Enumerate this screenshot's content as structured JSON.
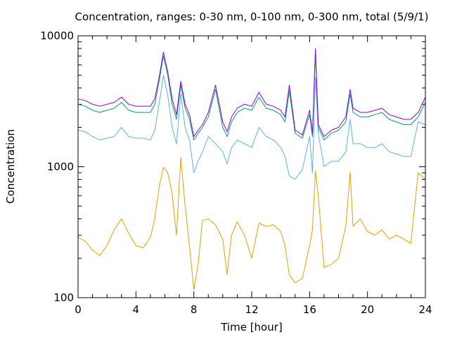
{
  "chart_data": {
    "type": "line",
    "title": "Concentration, ranges: 0-30 nm, 0-100 nm, 0-300 nm, total (5/9/1)",
    "xlabel": "Time [hour]",
    "ylabel": "Concentration",
    "xlim": [
      0,
      24
    ],
    "ylim": [
      100,
      10000
    ],
    "yscale": "log",
    "grid": false,
    "legend": "none",
    "x_ticks": [
      0,
      4,
      8,
      12,
      16,
      20,
      24
    ],
    "x_tick_labels": [
      "0",
      "4",
      "8",
      "12",
      "16",
      "20",
      "24"
    ],
    "y_ticks": [
      100,
      1000,
      10000
    ],
    "y_tick_labels": [
      "100",
      "1000",
      "10000"
    ],
    "series": [
      {
        "color": "#e69f00",
        "x": [
          0,
          0.5,
          1,
          1.5,
          2,
          2.5,
          3,
          3.5,
          4,
          4.5,
          5,
          5.3,
          5.6,
          5.9,
          6.2,
          6.5,
          6.8,
          7.1,
          7.4,
          7.7,
          8,
          8.3,
          8.6,
          9,
          9.5,
          10,
          10.3,
          10.6,
          11,
          11.5,
          12,
          12.5,
          13,
          13.5,
          14,
          14.3,
          14.6,
          15,
          15.5,
          16,
          16.2,
          16.4,
          16.6,
          17,
          17.5,
          18,
          18.5,
          18.8,
          19,
          19.5,
          20,
          20.5,
          21,
          21.5,
          22,
          22.5,
          23,
          23.5,
          24
        ],
        "y": [
          290,
          270,
          230,
          210,
          250,
          330,
          400,
          310,
          250,
          240,
          290,
          400,
          700,
          990,
          900,
          620,
          300,
          1180,
          500,
          250,
          115,
          180,
          390,
          400,
          360,
          280,
          150,
          300,
          380,
          300,
          200,
          370,
          350,
          360,
          320,
          250,
          150,
          130,
          140,
          250,
          330,
          930,
          600,
          170,
          180,
          200,
          350,
          910,
          350,
          400,
          320,
          300,
          330,
          280,
          300,
          280,
          260,
          900,
          800
        ]
      },
      {
        "color": "#56b4e9",
        "x": [
          0,
          0.5,
          1,
          1.5,
          2,
          2.5,
          3,
          3.5,
          4,
          4.5,
          5,
          5.3,
          5.6,
          5.9,
          6.2,
          6.5,
          6.8,
          7.1,
          7.4,
          7.7,
          8,
          8.3,
          8.6,
          9,
          9.5,
          10,
          10.3,
          10.6,
          11,
          11.5,
          12,
          12.5,
          13,
          13.5,
          14,
          14.3,
          14.6,
          15,
          15.5,
          16,
          16.2,
          16.4,
          16.6,
          17,
          17.5,
          18,
          18.5,
          18.8,
          19,
          19.5,
          20,
          20.5,
          21,
          21.5,
          22,
          22.5,
          23,
          23.5,
          24
        ],
        "y": [
          1900,
          1850,
          1700,
          1600,
          1650,
          1700,
          2000,
          1700,
          1650,
          1650,
          1600,
          1900,
          3000,
          5000,
          3500,
          2000,
          1500,
          3600,
          2000,
          1600,
          900,
          1100,
          1300,
          1700,
          1500,
          1300,
          1050,
          1400,
          1600,
          1500,
          1400,
          2000,
          1700,
          1600,
          1400,
          1200,
          850,
          800,
          950,
          1700,
          900,
          4800,
          1800,
          1000,
          1100,
          1100,
          1300,
          2300,
          1500,
          1500,
          1400,
          1400,
          1500,
          1300,
          1250,
          1200,
          1200,
          2200,
          2100
        ]
      },
      {
        "color": "#009e73",
        "x": [
          0,
          0.5,
          1,
          1.5,
          2,
          2.5,
          3,
          3.5,
          4,
          4.5,
          5,
          5.3,
          5.6,
          5.9,
          6.2,
          6.5,
          6.8,
          7.1,
          7.4,
          7.7,
          8,
          8.3,
          8.6,
          9,
          9.5,
          10,
          10.3,
          10.6,
          11,
          11.5,
          12,
          12.5,
          13,
          13.5,
          14,
          14.3,
          14.6,
          15,
          15.5,
          16,
          16.2,
          16.4,
          16.6,
          17,
          17.5,
          18,
          18.5,
          18.8,
          19,
          19.5,
          20,
          20.5,
          21,
          21.5,
          22,
          22.5,
          23,
          23.5,
          24
        ],
        "y": [
          3000,
          2900,
          2700,
          2600,
          2700,
          2800,
          3100,
          2700,
          2600,
          2600,
          2600,
          3000,
          4500,
          7000,
          5000,
          3000,
          2300,
          4200,
          2800,
          2300,
          1600,
          1800,
          2000,
          2400,
          3900,
          2000,
          1700,
          2200,
          2600,
          2800,
          2700,
          3400,
          2800,
          2700,
          2500,
          2200,
          3800,
          1800,
          1650,
          2500,
          1700,
          7600,
          2000,
          1600,
          1800,
          1900,
          2200,
          3600,
          2600,
          2400,
          2400,
          2500,
          2600,
          2300,
          2200,
          2100,
          2100,
          2400,
          3100
        ]
      },
      {
        "color": "#9400d3",
        "x": [
          0,
          0.5,
          1,
          1.5,
          2,
          2.5,
          3,
          3.5,
          4,
          4.5,
          5,
          5.3,
          5.6,
          5.9,
          6.2,
          6.5,
          6.8,
          7.1,
          7.4,
          7.7,
          8,
          8.3,
          8.6,
          9,
          9.5,
          10,
          10.3,
          10.6,
          11,
          11.5,
          12,
          12.5,
          13,
          13.5,
          14,
          14.3,
          14.6,
          15,
          15.5,
          16,
          16.2,
          16.4,
          16.6,
          17,
          17.5,
          18,
          18.5,
          18.8,
          19,
          19.5,
          20,
          20.5,
          21,
          21.5,
          22,
          22.5,
          23,
          23.5,
          24
        ],
        "y": [
          3300,
          3200,
          3000,
          2900,
          3000,
          3100,
          3400,
          3000,
          2900,
          2900,
          2900,
          3300,
          4800,
          7500,
          5300,
          3300,
          2500,
          4500,
          3000,
          2500,
          1700,
          1900,
          2100,
          2600,
          4200,
          2200,
          1850,
          2400,
          2800,
          3000,
          2900,
          3700,
          3000,
          2900,
          2700,
          2400,
          4200,
          1900,
          1750,
          2700,
          1800,
          8000,
          2100,
          1700,
          1900,
          2000,
          2400,
          3900,
          2800,
          2600,
          2600,
          2700,
          2800,
          2500,
          2400,
          2300,
          2300,
          2600,
          3400
        ]
      }
    ]
  }
}
